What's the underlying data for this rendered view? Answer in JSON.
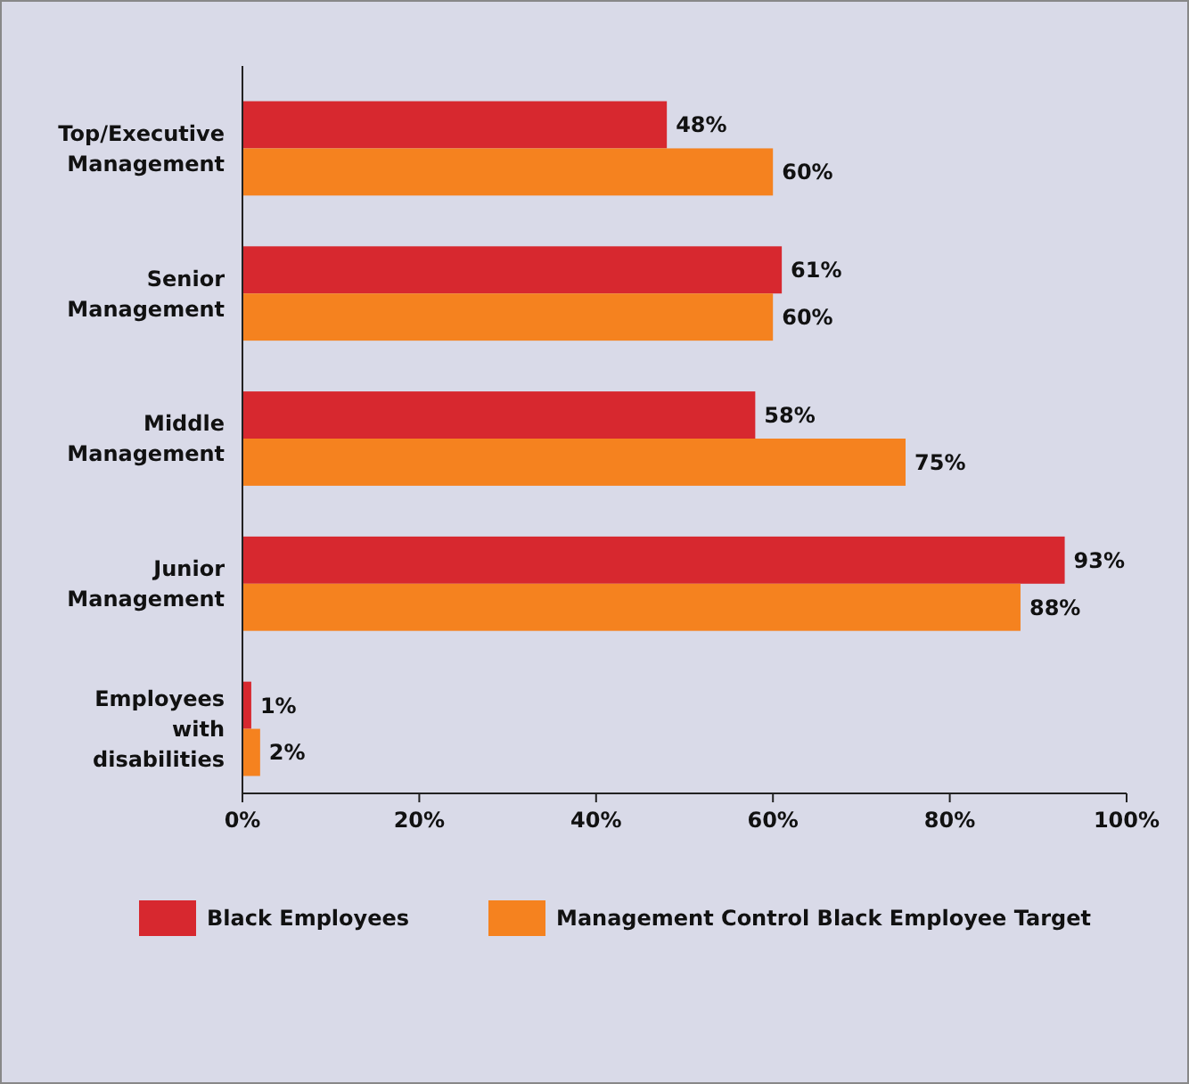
{
  "chart_data": {
    "type": "bar",
    "orientation": "horizontal",
    "categories": [
      "Top/Executive Management",
      "Senior Management",
      "Middle Management",
      "Junior Management",
      "Employees with disabilities"
    ],
    "series": [
      {
        "name": "Black Employees",
        "color": "#d7282f",
        "values": [
          48,
          61,
          58,
          93,
          1
        ],
        "value_labels": [
          "48%",
          "61%",
          "58%",
          "93%",
          "1%"
        ]
      },
      {
        "name": "Management Control Black Employee Target",
        "color": "#f5821f",
        "values": [
          60,
          60,
          75,
          88,
          2
        ],
        "value_labels": [
          "60%",
          "60%",
          "75%",
          "88%",
          "2%"
        ]
      }
    ],
    "xlim": [
      0,
      100
    ],
    "xticks": [
      {
        "value": 0,
        "label": "0%"
      },
      {
        "value": 20,
        "label": "20%"
      },
      {
        "value": 40,
        "label": "40%"
      },
      {
        "value": 60,
        "label": "60%"
      },
      {
        "value": 80,
        "label": "80%"
      },
      {
        "value": 100,
        "label": "100%"
      }
    ],
    "grid": false,
    "legend": "bottom"
  }
}
